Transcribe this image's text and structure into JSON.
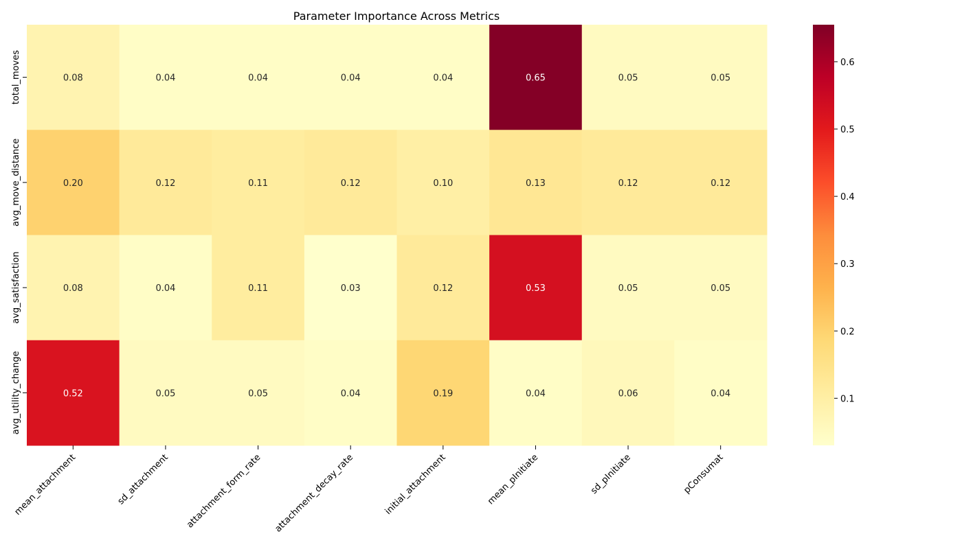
{
  "chart_data": {
    "type": "heatmap",
    "title": "Parameter Importance Across Metrics",
    "xlabel": "",
    "ylabel": "",
    "x_categories": [
      "mean_attachment",
      "sd_attachment",
      "attachment_form_rate",
      "attachment_decay_rate",
      "initial_attachment",
      "mean_pInitiate",
      "sd_pInitiate",
      "pConsumat"
    ],
    "y_categories": [
      "total_moves",
      "avg_move_distance",
      "avg_satisfaction",
      "avg_utility_change"
    ],
    "values": [
      [
        0.08,
        0.04,
        0.04,
        0.04,
        0.04,
        0.65,
        0.05,
        0.05
      ],
      [
        0.2,
        0.12,
        0.11,
        0.12,
        0.1,
        0.13,
        0.12,
        0.12
      ],
      [
        0.08,
        0.04,
        0.11,
        0.03,
        0.12,
        0.53,
        0.05,
        0.05
      ],
      [
        0.52,
        0.05,
        0.05,
        0.04,
        0.19,
        0.04,
        0.06,
        0.04
      ]
    ],
    "value_format": "2 decimals",
    "colormap": "YlOrRd",
    "colormap_stops": [
      "#ffffcc",
      "#ffeda0",
      "#fed976",
      "#feb24c",
      "#fd8d3c",
      "#fc4e2a",
      "#e31a1c",
      "#bd0026",
      "#800026"
    ],
    "color_range": [
      0.03,
      0.655
    ],
    "colorbar": {
      "ticks": [
        "0.1",
        "0.2",
        "0.3",
        "0.4",
        "0.5",
        "0.6"
      ],
      "tick_values": [
        0.1,
        0.2,
        0.3,
        0.4,
        0.5,
        0.6
      ]
    },
    "grid": false,
    "legend": "colorbar-right"
  }
}
